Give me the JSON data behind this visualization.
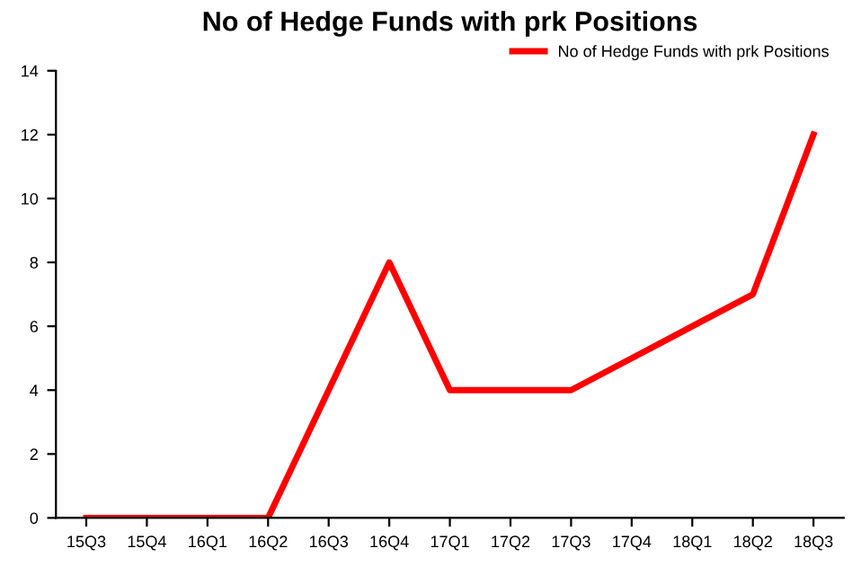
{
  "chart_data": {
    "type": "line",
    "title": "No of Hedge Funds with prk Positions",
    "categories": [
      "15Q3",
      "15Q4",
      "16Q1",
      "16Q2",
      "16Q3",
      "16Q4",
      "17Q1",
      "17Q2",
      "17Q3",
      "17Q4",
      "18Q1",
      "18Q2",
      "18Q3"
    ],
    "series": [
      {
        "name": "No of Hedge Funds with prk Positions",
        "color": "#ff0000",
        "values": [
          0,
          0,
          0,
          0,
          4,
          8,
          4,
          4,
          4,
          5,
          6,
          7,
          12
        ]
      }
    ],
    "ylim": [
      0,
      14
    ],
    "yticks": [
      0,
      2,
      4,
      6,
      8,
      10,
      12,
      14
    ],
    "grid": false,
    "legend": "top right",
    "marker": "none",
    "line_style": "solid"
  }
}
